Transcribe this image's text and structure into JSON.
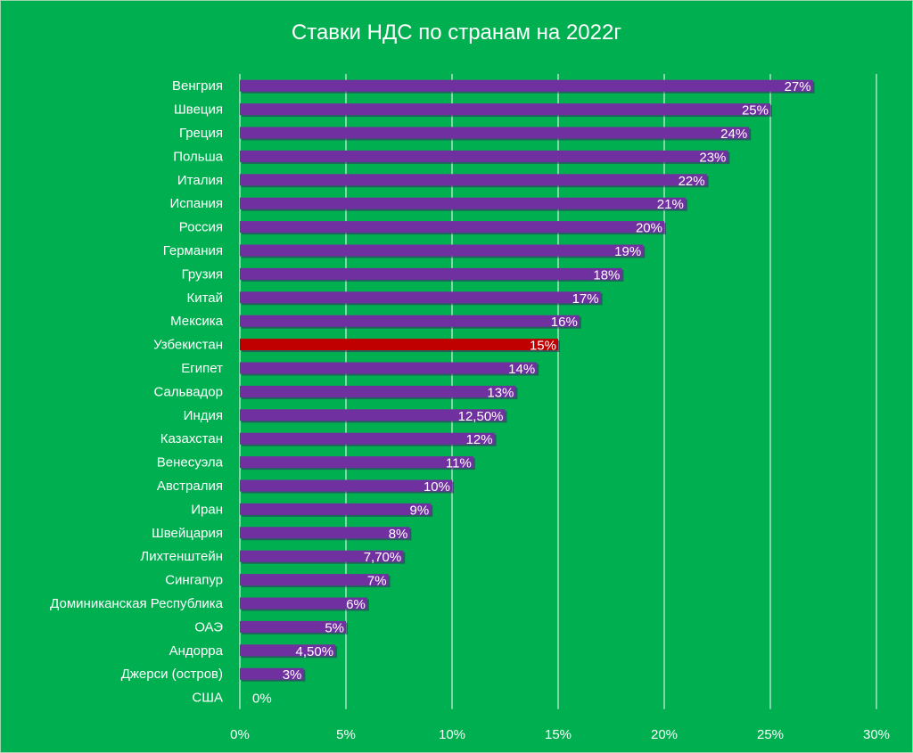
{
  "chart_data": {
    "type": "bar",
    "orientation": "horizontal",
    "title": "Ставки НДС по странам на 2022г",
    "categories": [
      "Венгрия",
      "Швеция",
      "Греция",
      "Польша",
      "Италия",
      "Испания",
      "Россия",
      "Германия",
      "Грузия",
      "Китай",
      "Мексика",
      "Узбекистан",
      "Египет",
      "Сальвадор",
      "Индия",
      "Казахстан",
      "Венесуэла",
      "Австралия",
      "Иран",
      "Швейцария",
      "Лихтенштейн",
      "Сингапур",
      "Доминиканская Республика",
      "ОАЭ",
      "Андорра",
      "Джерси (остров)",
      "США"
    ],
    "values": [
      27,
      25,
      24,
      23,
      22,
      21,
      20,
      19,
      18,
      17,
      16,
      15,
      14,
      13,
      12.5,
      12,
      11,
      10,
      9,
      8,
      7.7,
      7,
      6,
      5,
      4.5,
      3,
      0
    ],
    "data_labels": [
      "27%",
      "25%",
      "24%",
      "23%",
      "22%",
      "21%",
      "20%",
      "19%",
      "18%",
      "17%",
      "16%",
      "15%",
      "14%",
      "13%",
      "12,50%",
      "12%",
      "11%",
      "10%",
      "9%",
      "8%",
      "7,70%",
      "7%",
      "6%",
      "5%",
      "4,50%",
      "3%",
      "0%"
    ],
    "highlight": "Узбекистан",
    "xlim": [
      0,
      30
    ],
    "x_ticks": [
      0,
      5,
      10,
      15,
      20,
      25,
      30
    ],
    "x_tick_labels": [
      "0%",
      "5%",
      "10%",
      "15%",
      "20%",
      "25%",
      "30%"
    ],
    "grid": true,
    "legend": "none",
    "colors": {
      "background": "#00B050",
      "bar": "#7030A0",
      "highlight_bar": "#C00000",
      "gridline": "#ffffff",
      "text": "#ffffff"
    }
  }
}
